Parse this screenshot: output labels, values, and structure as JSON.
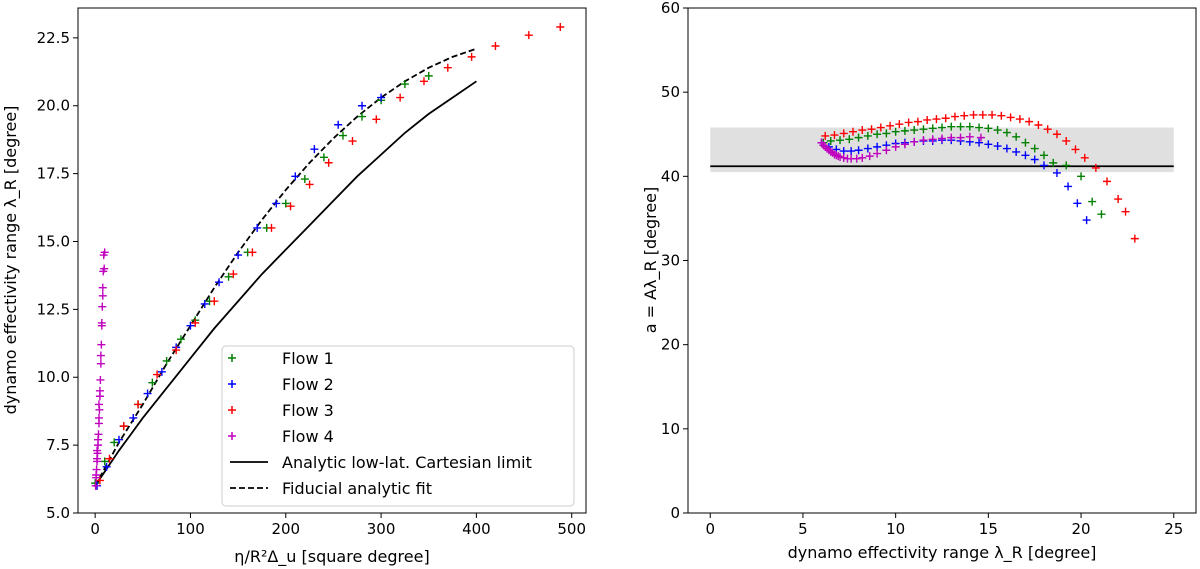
{
  "chart_data": [
    {
      "type": "scatter",
      "xlabel": "η/R²Δ_u [square degree]",
      "ylabel": "dynamo effectivity range λ_R [degree]",
      "xlim": [
        -18,
        515
      ],
      "ylim": [
        5.0,
        23.6
      ],
      "xticks": [
        0,
        100,
        200,
        300,
        400,
        500
      ],
      "yticks": [
        5.0,
        7.5,
        10.0,
        12.5,
        15.0,
        17.5,
        20.0,
        22.5
      ],
      "xtick_labels": [
        "0",
        "100",
        "200",
        "300",
        "400",
        "500"
      ],
      "ytick_labels": [
        "5.0",
        "7.5",
        "10.0",
        "12.5",
        "15.0",
        "17.5",
        "20.0",
        "22.5"
      ],
      "legend_position": "lower-right",
      "series": [
        {
          "name": "Flow 1",
          "color": "#008000",
          "marker": "plus",
          "x": [
            0,
            10,
            20,
            30,
            45,
            60,
            75,
            90,
            105,
            120,
            140,
            160,
            180,
            200,
            220,
            240,
            260,
            280,
            300,
            325,
            350
          ],
          "y": [
            6.1,
            6.9,
            7.6,
            8.2,
            9.0,
            9.8,
            10.6,
            11.4,
            12.1,
            12.8,
            13.7,
            14.6,
            15.5,
            16.4,
            17.3,
            18.1,
            18.9,
            19.6,
            20.2,
            20.8,
            21.1
          ]
        },
        {
          "name": "Flow 2",
          "color": "#0000ff",
          "marker": "plus",
          "x": [
            2,
            12,
            25,
            40,
            55,
            70,
            85,
            100,
            115,
            130,
            150,
            170,
            190,
            210,
            230,
            255,
            280,
            300
          ],
          "y": [
            6.0,
            6.7,
            7.7,
            8.5,
            9.4,
            10.2,
            11.1,
            11.9,
            12.7,
            13.5,
            14.5,
            15.5,
            16.4,
            17.4,
            18.4,
            19.3,
            20.0,
            20.3
          ]
        },
        {
          "name": "Flow 3",
          "color": "#ff0000",
          "marker": "plus",
          "x": [
            5,
            15,
            30,
            45,
            65,
            85,
            105,
            125,
            145,
            165,
            185,
            205,
            225,
            245,
            270,
            295,
            320,
            345,
            370,
            395,
            420,
            455,
            488
          ],
          "y": [
            6.2,
            7.0,
            8.2,
            9.0,
            10.1,
            11.0,
            12.0,
            12.8,
            13.8,
            14.6,
            15.5,
            16.3,
            17.1,
            17.9,
            18.7,
            19.5,
            20.3,
            20.9,
            21.4,
            21.8,
            22.2,
            22.6,
            22.9
          ]
        },
        {
          "name": "Flow 4",
          "color": "#bf00bf",
          "marker": "plus",
          "x": [
            0.5,
            1,
            1.5,
            2,
            2.5,
            3,
            3.5,
            4,
            4.5,
            5,
            5.5,
            6,
            6.5,
            7,
            7.5,
            8,
            8.5,
            9,
            9.5,
            10,
            1,
            2,
            3,
            4,
            5,
            6,
            7,
            8,
            2,
            4
          ],
          "y": [
            6.0,
            6.3,
            6.6,
            6.9,
            7.2,
            7.5,
            7.9,
            8.3,
            8.8,
            9.3,
            9.9,
            10.5,
            11.2,
            11.9,
            12.6,
            13.3,
            13.9,
            14.5,
            14.0,
            14.6,
            6.4,
            7.0,
            7.7,
            8.5,
            9.5,
            10.8,
            12.0,
            13.0,
            7.3,
            9.0
          ]
        },
        {
          "name": "Analytic low-lat. Cartesian limit",
          "color": "#000000",
          "style": "solid",
          "x": [
            0,
            25,
            50,
            75,
            100,
            125,
            150,
            175,
            200,
            225,
            250,
            275,
            300,
            325,
            350,
            375,
            400
          ],
          "y": [
            6.0,
            7.3,
            8.5,
            9.6,
            10.7,
            11.8,
            12.8,
            13.8,
            14.7,
            15.6,
            16.5,
            17.4,
            18.2,
            19.0,
            19.7,
            20.3,
            20.9
          ]
        },
        {
          "name": "Fiducial analytic fit",
          "color": "#000000",
          "style": "dashed",
          "x": [
            0,
            25,
            50,
            75,
            100,
            125,
            150,
            175,
            200,
            225,
            250,
            275,
            300,
            325,
            350,
            375,
            400
          ],
          "y": [
            6.0,
            7.6,
            9.0,
            10.5,
            11.9,
            13.3,
            14.6,
            15.8,
            16.9,
            17.9,
            18.8,
            19.6,
            20.3,
            20.9,
            21.4,
            21.8,
            22.1
          ]
        }
      ]
    },
    {
      "type": "scatter",
      "xlabel": "dynamo effectivity range λ_R [degree]",
      "ylabel": "a = Aλ_R [degree]",
      "xlim": [
        -1.2,
        26.2
      ],
      "ylim": [
        0,
        60
      ],
      "xticks": [
        0,
        5,
        10,
        15,
        20,
        25
      ],
      "yticks": [
        0,
        10,
        20,
        30,
        40,
        50,
        60
      ],
      "xtick_labels": [
        "0",
        "5",
        "10",
        "15",
        "20",
        "25"
      ],
      "ytick_labels": [
        "0",
        "10",
        "20",
        "30",
        "40",
        "50",
        "60"
      ],
      "band": {
        "x": [
          0,
          25
        ],
        "y": [
          40.5,
          45.8
        ],
        "color": "#e0e0e0"
      },
      "hline": {
        "x": [
          0,
          25
        ],
        "y": 41.2,
        "color": "#000000"
      },
      "series": [
        {
          "name": "Flow 1",
          "color": "#008000",
          "marker": "plus",
          "x": [
            6.1,
            6.5,
            7.0,
            7.5,
            8.0,
            8.5,
            9.0,
            9.5,
            10.0,
            10.5,
            11.0,
            11.5,
            12.0,
            12.5,
            13.0,
            13.5,
            14.0,
            14.5,
            15.0,
            15.5,
            16.0,
            16.5,
            17.0,
            17.5,
            18.0,
            18.5,
            19.2,
            20.0,
            20.6,
            21.1
          ],
          "y": [
            44.0,
            44.2,
            44.3,
            44.4,
            44.6,
            44.8,
            45.0,
            45.1,
            45.3,
            45.4,
            45.5,
            45.6,
            45.7,
            45.8,
            45.9,
            45.9,
            45.9,
            45.8,
            45.7,
            45.5,
            45.2,
            44.7,
            44.0,
            43.3,
            42.5,
            41.6,
            41.3,
            40.0,
            37.0,
            35.5
          ]
        },
        {
          "name": "Flow 2",
          "color": "#0000ff",
          "marker": "plus",
          "x": [
            6.0,
            6.4,
            6.8,
            7.2,
            7.6,
            8.0,
            8.5,
            9.0,
            9.5,
            10.0,
            10.5,
            11.0,
            11.5,
            12.0,
            12.5,
            13.0,
            13.5,
            14.0,
            14.5,
            15.0,
            15.5,
            16.0,
            16.5,
            17.0,
            17.5,
            18.0,
            18.7,
            19.3,
            19.8,
            20.3
          ],
          "y": [
            44.0,
            43.5,
            43.2,
            43.0,
            43.0,
            43.1,
            43.3,
            43.5,
            43.7,
            43.9,
            44.0,
            44.1,
            44.2,
            44.2,
            44.3,
            44.3,
            44.2,
            44.1,
            44.0,
            43.8,
            43.6,
            43.3,
            42.9,
            42.5,
            42.0,
            41.3,
            40.4,
            38.8,
            36.8,
            34.8
          ]
        },
        {
          "name": "Flow 3",
          "color": "#ff0000",
          "marker": "plus",
          "x": [
            6.2,
            6.7,
            7.2,
            7.7,
            8.2,
            8.7,
            9.2,
            9.7,
            10.2,
            10.7,
            11.2,
            11.7,
            12.2,
            12.7,
            13.2,
            13.7,
            14.2,
            14.7,
            15.2,
            15.7,
            16.2,
            16.7,
            17.2,
            17.7,
            18.2,
            18.7,
            19.2,
            19.7,
            20.2,
            20.8,
            21.4,
            22.0,
            22.4,
            22.9
          ],
          "y": [
            44.8,
            44.9,
            45.1,
            45.3,
            45.5,
            45.6,
            45.8,
            46.0,
            46.2,
            46.4,
            46.5,
            46.7,
            46.8,
            46.9,
            47.1,
            47.2,
            47.3,
            47.3,
            47.3,
            47.2,
            47.0,
            46.8,
            46.5,
            46.1,
            45.6,
            45.0,
            44.2,
            43.2,
            42.2,
            41.0,
            39.4,
            37.3,
            35.8,
            32.6
          ]
        },
        {
          "name": "Flow 4",
          "color": "#bf00bf",
          "marker": "plus",
          "x": [
            6.0,
            6.1,
            6.2,
            6.3,
            6.4,
            6.5,
            6.6,
            6.7,
            6.8,
            6.9,
            7.0,
            7.2,
            7.4,
            7.6,
            7.9,
            8.2,
            8.6,
            9.0,
            9.5,
            10.0,
            10.5,
            11.0,
            11.5,
            12.0,
            12.5,
            13.0,
            13.5,
            14.0,
            14.6
          ],
          "y": [
            44.0,
            43.7,
            43.5,
            43.3,
            43.1,
            42.9,
            42.8,
            42.6,
            42.5,
            42.4,
            42.3,
            42.2,
            42.1,
            42.1,
            42.1,
            42.2,
            42.4,
            42.7,
            43.1,
            43.5,
            43.8,
            44.1,
            44.3,
            44.4,
            44.5,
            44.6,
            44.6,
            44.7,
            44.6
          ]
        }
      ]
    }
  ]
}
